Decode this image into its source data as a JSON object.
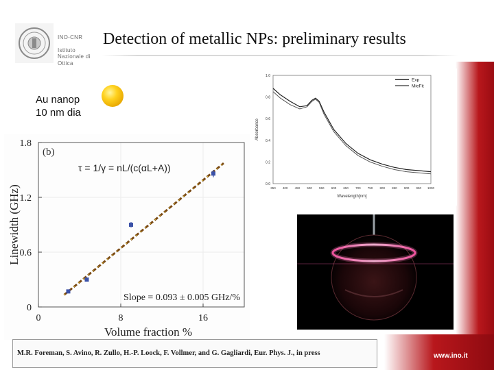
{
  "institute": {
    "name": "INO-CNR",
    "full_name": "Istituto\nNazionale di\nOttica"
  },
  "slide": {
    "title": "Detection of metallic NPs: preliminary results",
    "sample_line1": "Au nanop",
    "sample_line2": "10 nm dia",
    "reference": "M.R. Foreman, S. Avino, R. Zullo, H.-P. Loock, F. Vollmer, and G. Gagliardi, Eur. Phys. J., in press",
    "website": "www.ino.it"
  },
  "colors": {
    "accent_red": "#b8171c",
    "gold_sphere": "#ffd21f",
    "trend_line": "#7a4a14",
    "point_color": "#3c52a8"
  },
  "chart_data": [
    {
      "type": "scatter",
      "panel_label": "(b)",
      "annotation": "τ = 1/γ = nL/(c(αL+A))",
      "fit_label": "Slope = 0.093 ± 0.005 GHz/%",
      "xlabel": "Volume fraction %",
      "ylabel": "Linewidth (GHz)",
      "xlim": [
        0,
        20
      ],
      "ylim": [
        0,
        1.8
      ],
      "x_ticks": [
        0,
        8,
        16
      ],
      "y_ticks": [
        0,
        0.6,
        1.2,
        1.8
      ],
      "points": [
        {
          "x": 2.9,
          "y": 0.17,
          "err": 0.02
        },
        {
          "x": 4.7,
          "y": 0.3,
          "err": 0.02
        },
        {
          "x": 9.0,
          "y": 0.9,
          "err": 0.03
        },
        {
          "x": 17.0,
          "y": 1.46,
          "err": 0.04
        }
      ],
      "fit": {
        "slope": 0.093,
        "intercept": -0.1,
        "x_range": [
          2.5,
          18.0
        ]
      }
    },
    {
      "type": "line",
      "xlabel": "Wavelength[nm]",
      "ylabel": "Absorbance",
      "xlim": [
        350,
        1000
      ],
      "ylim": [
        0,
        1.0
      ],
      "x_ticks": [
        350,
        400,
        450,
        500,
        550,
        600,
        650,
        700,
        750,
        800,
        850,
        900,
        950,
        1000
      ],
      "y_ticks": [
        0.0,
        0.2,
        0.4,
        0.6,
        0.8,
        1.0
      ],
      "series": [
        {
          "name": "Exp",
          "x": [
            350,
            380,
            420,
            460,
            490,
            510,
            525,
            540,
            560,
            600,
            650,
            700,
            750,
            800,
            850,
            900,
            950,
            1000
          ],
          "y": [
            0.88,
            0.82,
            0.76,
            0.71,
            0.72,
            0.77,
            0.79,
            0.76,
            0.66,
            0.5,
            0.37,
            0.28,
            0.22,
            0.18,
            0.15,
            0.13,
            0.12,
            0.11
          ]
        },
        {
          "name": "MieFit",
          "x": [
            350,
            380,
            420,
            460,
            490,
            510,
            525,
            540,
            560,
            600,
            650,
            700,
            750,
            800,
            850,
            900,
            950,
            1000
          ],
          "y": [
            0.85,
            0.79,
            0.73,
            0.69,
            0.71,
            0.76,
            0.78,
            0.75,
            0.64,
            0.48,
            0.35,
            0.26,
            0.2,
            0.16,
            0.13,
            0.11,
            0.1,
            0.09
          ]
        }
      ]
    }
  ]
}
